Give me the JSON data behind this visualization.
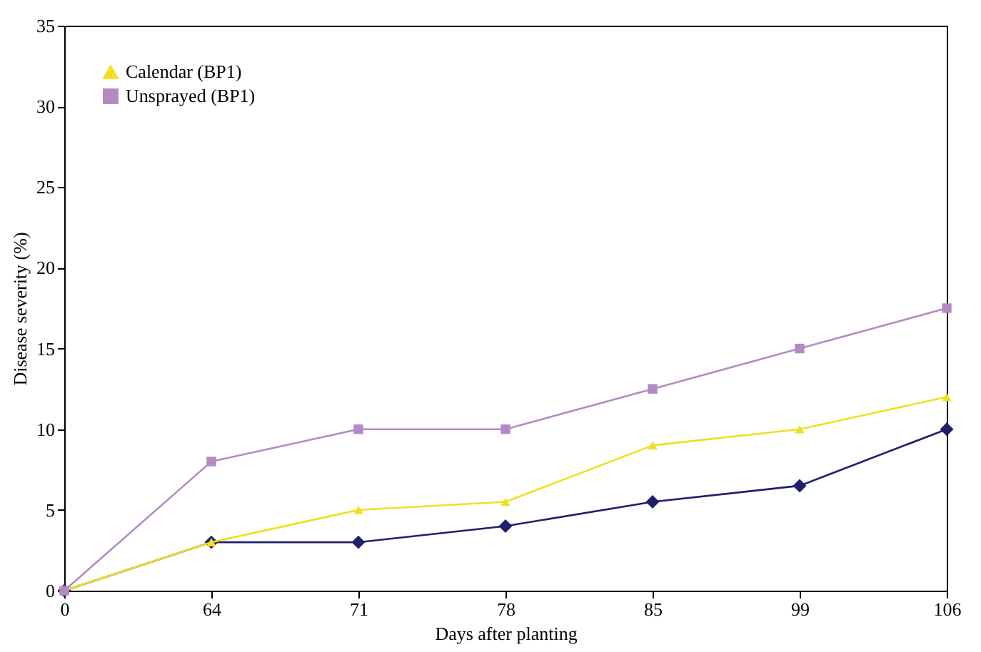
{
  "chart_data": {
    "type": "line",
    "xlabel": "Days after planting",
    "ylabel": "Disease severity (%)",
    "categories": [
      "0",
      "64",
      "71",
      "78",
      "85",
      "99",
      "106"
    ],
    "series": [
      {
        "color": "#1f1f6e",
        "marker": "diamond",
        "values": [
          0,
          3,
          3,
          4,
          5.5,
          6.5,
          10
        ]
      },
      {
        "name": "Calendar (BP1)",
        "color": "#f0e020",
        "marker": "triangle",
        "values": [
          0,
          3,
          5,
          5.5,
          9,
          10,
          12
        ]
      },
      {
        "name": "Unsprayed (BP1)",
        "color": "#b58ac4",
        "marker": "square",
        "values": [
          0,
          8,
          10,
          10,
          12.5,
          15,
          17.5
        ]
      }
    ],
    "ylim": [
      0,
      35
    ],
    "yticks": [
      0,
      5,
      10,
      15,
      20,
      25,
      30,
      35
    ],
    "grid": false,
    "legend": "top left",
    "line_style": "solid"
  }
}
